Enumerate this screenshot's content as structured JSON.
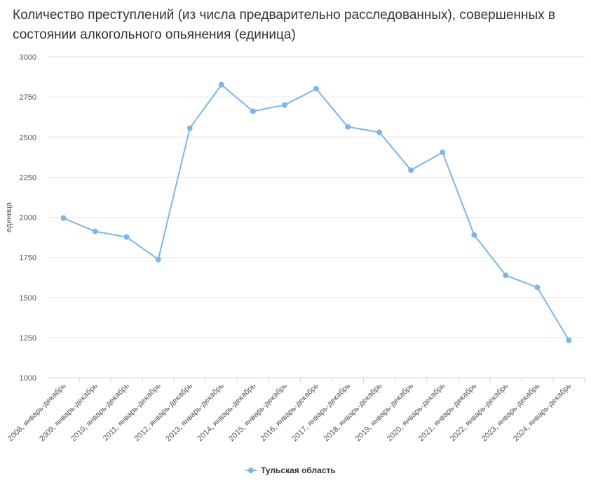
{
  "chart_data": {
    "type": "line",
    "title": "Количество преступлений (из числа предварительно расследованных), совершенных в состоянии алкогольного опьянения (единица)",
    "ylabel": "единица",
    "xlabel": "",
    "ylim": [
      1000,
      3000
    ],
    "yticks": [
      1000,
      1250,
      1500,
      1750,
      2000,
      2250,
      2500,
      2750,
      3000
    ],
    "grid": true,
    "legend_position": "bottom",
    "categories": [
      "2008, январь-декабрь",
      "2009, январь-декабрь",
      "2010, январь-декабрь",
      "2011, январь-декабрь",
      "2012, январь-декабрь",
      "2013, январь-декабрь",
      "2014, январь-декабрь",
      "2015, январь-декабрь",
      "2016, январь-декабрь",
      "2017, январь-декабрь",
      "2018, январь-декабрь",
      "2019, январь-декабрь",
      "2020, январь-декабрь",
      "2021, январь-декабрь",
      "2022, январь-декабрь",
      "2023, январь-декабрь",
      "2024, январь-декабрь"
    ],
    "series": [
      {
        "name": "Тульская область",
        "color": "#7cb5ec",
        "values": [
          1995,
          1912,
          1877,
          1737,
          2555,
          2826,
          2661,
          2700,
          2801,
          2564,
          2530,
          2294,
          2404,
          1890,
          1638,
          1563,
          1233
        ]
      }
    ]
  }
}
